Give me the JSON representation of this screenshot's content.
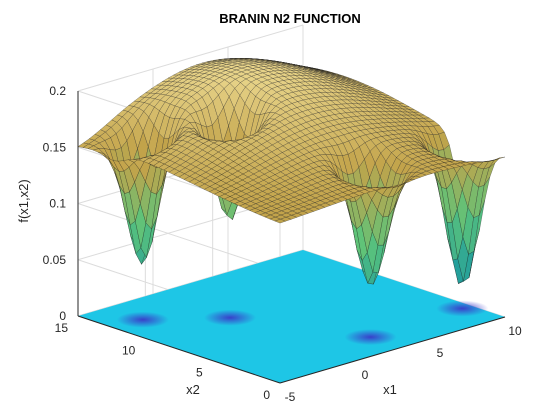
{
  "chart_data": {
    "type": "surface",
    "title": "BRANIN N2 FUNCTION",
    "xlabel": "x1",
    "ylabel": "x2",
    "zlabel": "f(x1,x2)",
    "xlim": [
      -5,
      10
    ],
    "ylim": [
      0,
      15
    ],
    "zlim": [
      0,
      0.2
    ],
    "xticks": [
      "-5",
      "0",
      "5",
      "10"
    ],
    "yticks": [
      "0",
      "5",
      "10",
      "15"
    ],
    "zticks": [
      "0",
      "0.05",
      "0.1",
      "0.15",
      "0.2"
    ],
    "grid": true,
    "colormap": "parula",
    "contour_at_base": true,
    "surface_summary": {
      "max_value": 0.2,
      "min_value": 0.0,
      "corner_value_low_x1_high_x2": 0.135,
      "edge_value_high_x1_low_x2": 0.15
    },
    "minima_wells": [
      {
        "x1": -3.1,
        "x2": 12.3,
        "f": 0.04
      },
      {
        "x1": 0.2,
        "x2": 9.5,
        "f": 0.06
      },
      {
        "x1": 3.1,
        "x2": 2.3,
        "f": 0.05
      },
      {
        "x1": 9.4,
        "x2": 2.5,
        "f": 0.03
      }
    ],
    "colors": {
      "surface_high": "#e8d48a",
      "surface_mid": "#c2a34a",
      "surface_low": "#5cc47a",
      "surface_deep": "#1f9c9e",
      "contour_bg": "#1ec6e6",
      "contour_min": "#3a39c8",
      "axis": "#262626",
      "grid": "#dcdcdc"
    }
  }
}
